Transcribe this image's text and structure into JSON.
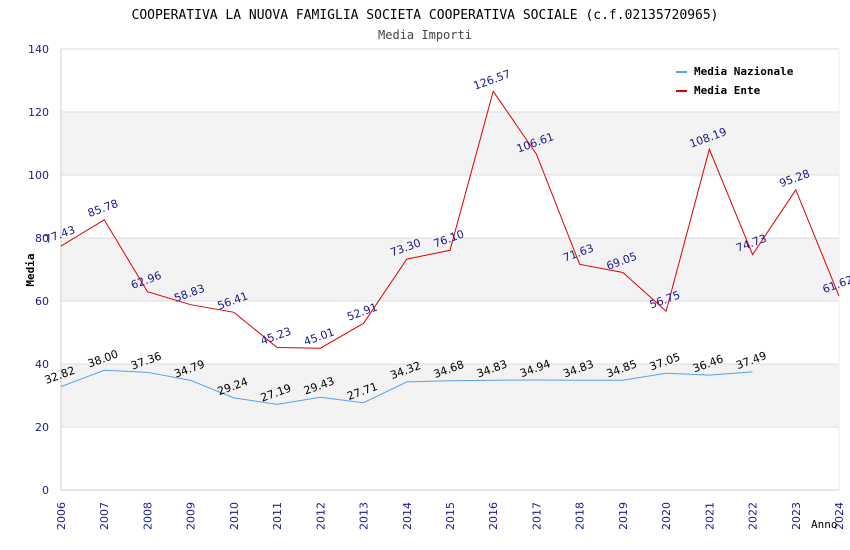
{
  "chart_data": {
    "type": "line",
    "title": "COOPERATIVA LA NUOVA FAMIGLIA SOCIETA COOPERATIVA SOCIALE (c.f.02135720965)",
    "subtitle": "Media Importi",
    "xlabel": "Anno",
    "ylabel": "Media",
    "ylim": [
      0,
      140
    ],
    "yticks": [
      "0",
      "20",
      "40",
      "60",
      "80",
      "100",
      "120",
      "140"
    ],
    "x": [
      "2006",
      "2007",
      "2008",
      "2009",
      "2010",
      "2011",
      "2012",
      "2013",
      "2014",
      "2015",
      "2016",
      "2017",
      "2018",
      "2019",
      "2020",
      "2021",
      "2022",
      "2023",
      "2024"
    ],
    "legend_position": "top-right",
    "series": [
      {
        "name": "Media Nazionale",
        "color": "#5aa0e6",
        "label_color": "#000000",
        "values": [
          32.82,
          38.0,
          37.36,
          34.79,
          29.24,
          27.19,
          29.43,
          27.71,
          34.32,
          34.68,
          34.83,
          34.94,
          34.83,
          34.85,
          37.05,
          36.46,
          37.49,
          null,
          null
        ],
        "labels": [
          "32.82",
          "38.00",
          "37.36",
          "34.79",
          "29.24",
          "27.19",
          "29.43",
          "27.71",
          "34.32",
          "34.68",
          "34.83",
          "34.94",
          "34.83",
          "34.85",
          "37.05",
          "36.46",
          "37.49",
          null,
          null
        ]
      },
      {
        "name": "Media Ente",
        "color": "#e00000",
        "label_color": "#1a1a8c",
        "values": [
          77.43,
          85.78,
          62.96,
          58.83,
          56.41,
          45.23,
          45.01,
          52.91,
          73.3,
          76.1,
          126.57,
          106.61,
          71.63,
          69.05,
          56.75,
          108.19,
          74.73,
          95.28,
          61.62
        ],
        "labels": [
          "77.43",
          "85.78",
          "62.96",
          "58.83",
          "56.41",
          "45.23",
          "45.01",
          "52.91",
          "73.30",
          "76.10",
          "126.57",
          "106.61",
          "71.63",
          "69.05",
          "56.75",
          "108.19",
          "74.73",
          "95.28",
          "61.62"
        ]
      }
    ]
  }
}
